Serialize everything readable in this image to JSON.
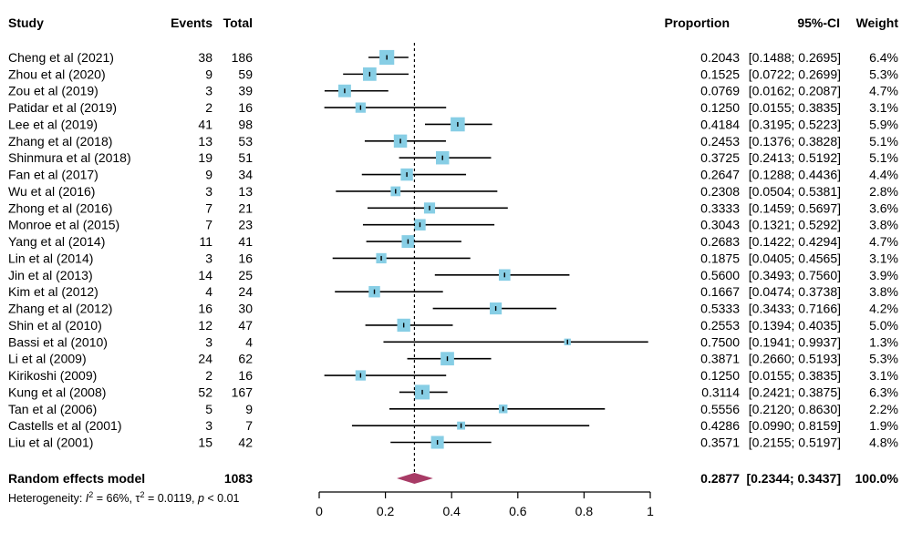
{
  "headers": {
    "study": "Study",
    "events": "Events",
    "total": "Total",
    "proportion": "Proportion",
    "ci": "95%-CI",
    "weight": "Weight"
  },
  "colors": {
    "box": "#87cee5",
    "diamond": "#a83b66",
    "line": "#000000"
  },
  "chart_data": {
    "type": "forest",
    "xlim": [
      0,
      1
    ],
    "x_ticks": [
      "0",
      "0.2",
      "0.4",
      "0.6",
      "0.8",
      "1"
    ],
    "reference_line": 0.2877,
    "studies": [
      {
        "study": "Cheng et al (2021)",
        "events": "38",
        "total": "186",
        "proportion": 0.2043,
        "lower": 0.1488,
        "upper": 0.2695,
        "proportion_text": "0.2043",
        "ci_text": "[0.1488; 0.2695]",
        "weight": "6.4%",
        "weight_value": 6.4
      },
      {
        "study": "Zhou et al (2020)",
        "events": "9",
        "total": "59",
        "proportion": 0.1525,
        "lower": 0.0722,
        "upper": 0.2699,
        "proportion_text": "0.1525",
        "ci_text": "[0.0722; 0.2699]",
        "weight": "5.3%",
        "weight_value": 5.3
      },
      {
        "study": "Zou et al (2019)",
        "events": "3",
        "total": "39",
        "proportion": 0.0769,
        "lower": 0.0162,
        "upper": 0.2087,
        "proportion_text": "0.0769",
        "ci_text": "[0.0162; 0.2087]",
        "weight": "4.7%",
        "weight_value": 4.7
      },
      {
        "study": "Patidar et al (2019)",
        "events": "2",
        "total": "16",
        "proportion": 0.125,
        "lower": 0.0155,
        "upper": 0.3835,
        "proportion_text": "0.1250",
        "ci_text": "[0.0155; 0.3835]",
        "weight": "3.1%",
        "weight_value": 3.1
      },
      {
        "study": "Lee  et al (2019)",
        "events": "41",
        "total": "98",
        "proportion": 0.4184,
        "lower": 0.3195,
        "upper": 0.5223,
        "proportion_text": "0.4184",
        "ci_text": "[0.3195; 0.5223]",
        "weight": "5.9%",
        "weight_value": 5.9
      },
      {
        "study": "Zhang et al  (2018)",
        "events": "13",
        "total": "53",
        "proportion": 0.2453,
        "lower": 0.1376,
        "upper": 0.3828,
        "proportion_text": "0.2453",
        "ci_text": "[0.1376; 0.3828]",
        "weight": "5.1%",
        "weight_value": 5.1
      },
      {
        "study": "Shinmura et al (2018)",
        "events": "19",
        "total": "51",
        "proportion": 0.3725,
        "lower": 0.2413,
        "upper": 0.5192,
        "proportion_text": "0.3725",
        "ci_text": "[0.2413; 0.5192]",
        "weight": "5.1%",
        "weight_value": 5.1
      },
      {
        "study": "Fan et al (2017)",
        "events": "9",
        "total": "34",
        "proportion": 0.2647,
        "lower": 0.1288,
        "upper": 0.4436,
        "proportion_text": "0.2647",
        "ci_text": "[0.1288; 0.4436]",
        "weight": "4.4%",
        "weight_value": 4.4
      },
      {
        "study": "Wu et al (2016)",
        "events": "3",
        "total": "13",
        "proportion": 0.2308,
        "lower": 0.0504,
        "upper": 0.5381,
        "proportion_text": "0.2308",
        "ci_text": "[0.0504; 0.5381]",
        "weight": "2.8%",
        "weight_value": 2.8
      },
      {
        "study": "Zhong et al (2016)",
        "events": "7",
        "total": "21",
        "proportion": 0.3333,
        "lower": 0.1459,
        "upper": 0.5697,
        "proportion_text": "0.3333",
        "ci_text": "[0.1459; 0.5697]",
        "weight": "3.6%",
        "weight_value": 3.6
      },
      {
        "study": "Monroe et al (2015)",
        "events": "7",
        "total": "23",
        "proportion": 0.3043,
        "lower": 0.1321,
        "upper": 0.5292,
        "proportion_text": "0.3043",
        "ci_text": "[0.1321; 0.5292]",
        "weight": "3.8%",
        "weight_value": 3.8
      },
      {
        "study": "Yang et al (2014)",
        "events": "11",
        "total": "41",
        "proportion": 0.2683,
        "lower": 0.1422,
        "upper": 0.4294,
        "proportion_text": "0.2683",
        "ci_text": "[0.1422; 0.4294]",
        "weight": "4.7%",
        "weight_value": 4.7
      },
      {
        "study": "Lin et al (2014)",
        "events": "3",
        "total": "16",
        "proportion": 0.1875,
        "lower": 0.0405,
        "upper": 0.4565,
        "proportion_text": "0.1875",
        "ci_text": "[0.0405; 0.4565]",
        "weight": "3.1%",
        "weight_value": 3.1
      },
      {
        "study": "Jin et al (2013)",
        "events": "14",
        "total": "25",
        "proportion": 0.56,
        "lower": 0.3493,
        "upper": 0.756,
        "proportion_text": "0.5600",
        "ci_text": "[0.3493; 0.7560]",
        "weight": "3.9%",
        "weight_value": 3.9
      },
      {
        "study": "Kim et al (2012)",
        "events": "4",
        "total": "24",
        "proportion": 0.1667,
        "lower": 0.0474,
        "upper": 0.3738,
        "proportion_text": "0.1667",
        "ci_text": "[0.0474; 0.3738]",
        "weight": "3.8%",
        "weight_value": 3.8
      },
      {
        "study": "Zhang et al (2012)",
        "events": "16",
        "total": "30",
        "proportion": 0.5333,
        "lower": 0.3433,
        "upper": 0.7166,
        "proportion_text": "0.5333",
        "ci_text": "[0.3433; 0.7166]",
        "weight": "4.2%",
        "weight_value": 4.2
      },
      {
        "study": "Shin et al (2010)",
        "events": "12",
        "total": "47",
        "proportion": 0.2553,
        "lower": 0.1394,
        "upper": 0.4035,
        "proportion_text": "0.2553",
        "ci_text": "[0.1394; 0.4035]",
        "weight": "5.0%",
        "weight_value": 5.0
      },
      {
        "study": "Bassi  et al (2010)",
        "events": "3",
        "total": "4",
        "proportion": 0.75,
        "lower": 0.1941,
        "upper": 0.9937,
        "proportion_text": "0.7500",
        "ci_text": "[0.1941; 0.9937]",
        "weight": "1.3%",
        "weight_value": 1.3
      },
      {
        "study": "Li et al (2009)",
        "events": "24",
        "total": "62",
        "proportion": 0.3871,
        "lower": 0.266,
        "upper": 0.5193,
        "proportion_text": "0.3871",
        "ci_text": "[0.2660; 0.5193]",
        "weight": "5.3%",
        "weight_value": 5.3
      },
      {
        "study": "Kirikoshi (2009)",
        "events": "2",
        "total": "16",
        "proportion": 0.125,
        "lower": 0.0155,
        "upper": 0.3835,
        "proportion_text": "0.1250",
        "ci_text": "[0.0155; 0.3835]",
        "weight": "3.1%",
        "weight_value": 3.1
      },
      {
        "study": "Kung et al (2008)",
        "events": "52",
        "total": "167",
        "proportion": 0.3114,
        "lower": 0.2421,
        "upper": 0.3875,
        "proportion_text": "0.3114",
        "ci_text": "[0.2421; 0.3875]",
        "weight": "6.3%",
        "weight_value": 6.3
      },
      {
        "study": "Tan et al (2006)",
        "events": "5",
        "total": "9",
        "proportion": 0.5556,
        "lower": 0.212,
        "upper": 0.863,
        "proportion_text": "0.5556",
        "ci_text": "[0.2120; 0.8630]",
        "weight": "2.2%",
        "weight_value": 2.2
      },
      {
        "study": "Castells et al (2001)",
        "events": "3",
        "total": "7",
        "proportion": 0.4286,
        "lower": 0.099,
        "upper": 0.8159,
        "proportion_text": "0.4286",
        "ci_text": "[0.0990; 0.8159]",
        "weight": "1.9%",
        "weight_value": 1.9
      },
      {
        "study": "Liu et al (2001)",
        "events": "15",
        "total": "42",
        "proportion": 0.3571,
        "lower": 0.2155,
        "upper": 0.5197,
        "proportion_text": "0.3571",
        "ci_text": "[0.2155; 0.5197]",
        "weight": "4.8%",
        "weight_value": 4.8
      }
    ],
    "summary": {
      "label": "Random effects model",
      "total": "1083",
      "proportion": 0.2877,
      "lower": 0.2344,
      "upper": 0.3437,
      "proportion_text": "0.2877",
      "ci_text": "[0.2344; 0.3437]",
      "weight": "100.0%"
    },
    "heterogeneity": {
      "prefix": "Heterogeneity: ",
      "i2_symbol": "I",
      "i2_value": " = 66%, ",
      "tau_symbol": "τ",
      "tau_value": " = 0.0119, ",
      "p_symbol": "p",
      "p_value": " < 0.01"
    }
  }
}
